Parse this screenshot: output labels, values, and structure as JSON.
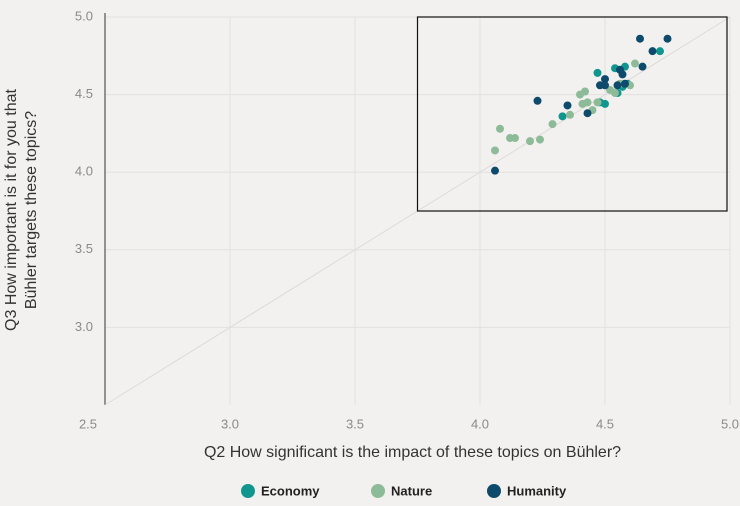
{
  "chart_data": {
    "type": "scatter",
    "x_label": "Q2 How significant is the impact of these topics on Bühler?",
    "y_label": [
      "Q3 How important is it for you that",
      "Bühler targets these topics?"
    ],
    "xlim": [
      2.5,
      5.0
    ],
    "ylim": [
      2.5,
      5.0
    ],
    "xticks": [
      {
        "value": 2.5,
        "label": "2.5"
      },
      {
        "value": 3,
        "label": "3.0"
      },
      {
        "value": 3.5,
        "label": "3.5"
      },
      {
        "value": 4,
        "label": "4.0"
      },
      {
        "value": 4.5,
        "label": "4.5"
      },
      {
        "value": 5,
        "label": "5.0"
      }
    ],
    "yticks": [
      {
        "value": 3,
        "label": "3.0"
      },
      {
        "value": 3.5,
        "label": "3.5"
      },
      {
        "value": 4,
        "label": "4.0"
      },
      {
        "value": 4.5,
        "label": "4.5"
      },
      {
        "value": 5,
        "label": "5.0"
      }
    ],
    "grid": true,
    "diagonal": true,
    "highlight_box": {
      "xlim": [
        3.75,
        5.0
      ],
      "ylim": [
        3.75,
        5.0
      ]
    },
    "legend": "bottom",
    "series": [
      {
        "name": "Economy",
        "color": "#11968f",
        "x": [
          4.47,
          4.5,
          4.48,
          4.33,
          4.54,
          4.58,
          4.59,
          4.72,
          4.55,
          4.57
        ],
        "values": [
          4.64,
          4.44,
          4.45,
          4.36,
          4.67,
          4.68,
          4.57,
          4.78,
          4.51,
          4.55
        ]
      },
      {
        "name": "Nature",
        "color": "#8dbb98",
        "x": [
          4.06,
          4.08,
          4.12,
          4.14,
          4.2,
          4.24,
          4.29,
          4.36,
          4.4,
          4.42,
          4.41,
          4.43,
          4.45,
          4.47,
          4.52,
          4.54,
          4.62,
          4.56,
          4.6
        ],
        "values": [
          4.14,
          4.28,
          4.22,
          4.22,
          4.2,
          4.21,
          4.31,
          4.37,
          4.5,
          4.52,
          4.44,
          4.45,
          4.4,
          4.45,
          4.53,
          4.51,
          4.7,
          4.57,
          4.56
        ]
      },
      {
        "name": "Humanity",
        "color": "#0d4a6b",
        "x": [
          4.06,
          4.23,
          4.35,
          4.43,
          4.48,
          4.5,
          4.5,
          4.55,
          4.56,
          4.57,
          4.58,
          4.64,
          4.65,
          4.69,
          4.75
        ],
        "values": [
          4.01,
          4.46,
          4.43,
          4.38,
          4.56,
          4.6,
          4.56,
          4.56,
          4.66,
          4.63,
          4.57,
          4.86,
          4.68,
          4.78,
          4.86
        ]
      }
    ]
  }
}
